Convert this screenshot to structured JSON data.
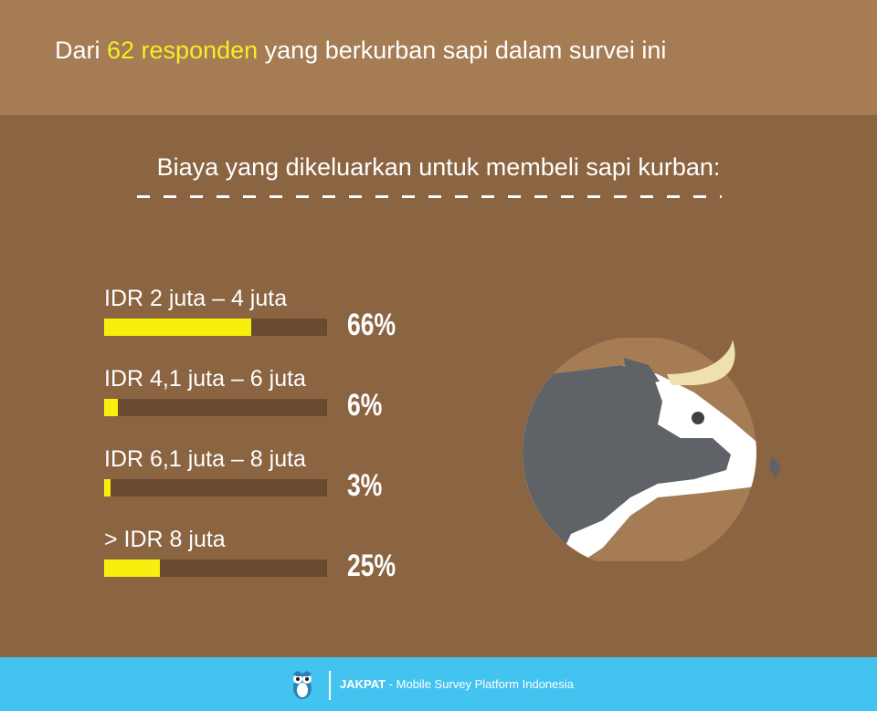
{
  "header": {
    "prefix": "Dari ",
    "highlight": "62 responden",
    "suffix": " yang berkurban sapi dalam survei ini"
  },
  "subtitle": "Biaya yang dikeluarkan untuk membeli sapi kurban:",
  "colors": {
    "bar_fill": "#f7f00f",
    "bar_track": "#6b4a32",
    "background": "#8b6442",
    "header_bg": "#a57c54",
    "highlight_text": "#f4ee25",
    "footer_bg": "#43c3ef"
  },
  "chart_data": {
    "type": "bar",
    "orientation": "horizontal",
    "categories": [
      "IDR 2 juta – 4 juta",
      "IDR 4,1 juta – 6 juta",
      "IDR 6,1 juta – 8 juta",
      "> IDR 8 juta"
    ],
    "values": [
      66,
      6,
      3,
      25
    ],
    "value_labels": [
      "66%",
      "6%",
      "3%",
      "25%"
    ],
    "xlim": [
      0,
      100
    ]
  },
  "illustration": {
    "icon": "cow-head-icon"
  },
  "footer": {
    "logo": "owl-logo-icon",
    "brand": "JAKPAT",
    "tagline": " - Mobile Survey Platform Indonesia"
  }
}
